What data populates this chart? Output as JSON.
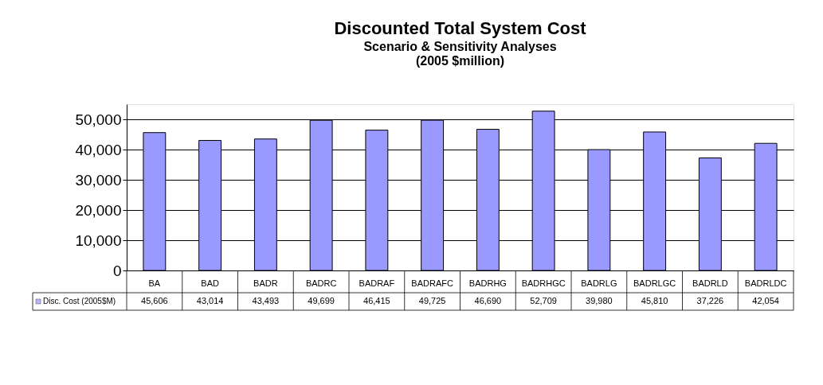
{
  "chart_data": {
    "type": "bar",
    "title": "Discounted Total System Cost",
    "subtitle": "Scenario & Sensitivity Analyses\n(2005 $million)",
    "categories": [
      "BA",
      "BAD",
      "BADR",
      "BADRC",
      "BADRAF",
      "BADRAFC",
      "BADRHG",
      "BADRHGC",
      "BADRLG",
      "BADRLGC",
      "BADRLD",
      "BADRLDC"
    ],
    "series": [
      {
        "name": "Disc. Cost (2005$M)",
        "color": "#9999ff",
        "values": [
          45606,
          43014,
          43493,
          49699,
          46415,
          49725,
          46690,
          52709,
          39980,
          45810,
          37226,
          42054
        ],
        "value_labels": [
          "45,606",
          "43,014",
          "43,493",
          "49,699",
          "46,415",
          "49,725",
          "46,690",
          "52,709",
          "39,980",
          "45,810",
          "37,226",
          "42,054"
        ]
      }
    ],
    "ylim": [
      0,
      55000
    ],
    "yticks": [
      {
        "value": 0,
        "label": "0"
      },
      {
        "value": 10000,
        "label": "10,000"
      },
      {
        "value": 20000,
        "label": "20,000"
      },
      {
        "value": 30000,
        "label": "30,000"
      },
      {
        "value": 40000,
        "label": "40,000"
      },
      {
        "value": 50000,
        "label": "50,000"
      }
    ],
    "grid": "y",
    "legend": "bottom left"
  }
}
